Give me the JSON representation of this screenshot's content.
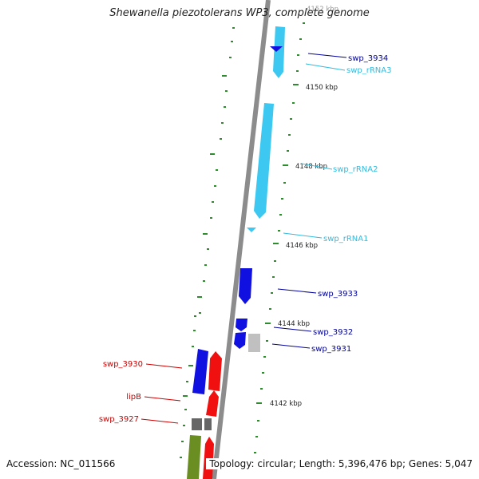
{
  "title": "Shewanella piezotolerans WP3, complete genome",
  "accession_text": "Accession: NC_011566",
  "summary_text": "Topology: circular; Length: 5,396,476 bp; Genes: 5,047",
  "colors": {
    "backbone": "#8c8c8c",
    "tick": "#2e8b2e",
    "rrna": "#3cc8f0",
    "cds_blue": "#1010e0",
    "cds_red": "#f01010",
    "cds_gray": "#c0c0c0",
    "cds_dark": "#666666",
    "cds_olive": "#6b8e23",
    "label_blue": "#000099",
    "label_cyan": "#33bbdd",
    "label_red": "#cc0000"
  },
  "scale_labels": [
    "4152 kbp",
    "4150 kbp",
    "4148 kbp",
    "4146 kbp",
    "4144 kbp",
    "4142 kbp"
  ],
  "features": [
    {
      "name": "swp_3934",
      "kind": "cds",
      "strand": "+",
      "start_kbp": 4151.25,
      "end_kbp": 4151.35
    },
    {
      "name": "swp_rRNA3",
      "kind": "rRNA",
      "strand": "-",
      "start_kbp": 4150.6,
      "end_kbp": 4152.1
    },
    {
      "name": "swp_rRNA2",
      "kind": "rRNA",
      "strand": "-",
      "start_kbp": 4146.9,
      "end_kbp": 4149.8
    },
    {
      "name": "swp_rRNA1",
      "kind": "rRNA",
      "strand": "-",
      "start_kbp": 4146.3,
      "end_kbp": 4146.4
    },
    {
      "name": "swp_3933",
      "kind": "cds",
      "strand": "-",
      "start_kbp": 4144.8,
      "end_kbp": 4145.6
    },
    {
      "name": "swp_3932",
      "kind": "cds",
      "strand": "+",
      "start_kbp": 4144.0,
      "end_kbp": 4144.3
    },
    {
      "name": "swp_3931",
      "kind": "cds",
      "strand": "-",
      "start_kbp": 4143.6,
      "end_kbp": 4144.1
    },
    {
      "name": "swp_3930",
      "kind": "cds",
      "strand": "+",
      "start_kbp": 4142.2,
      "end_kbp": 4143.8
    },
    {
      "name": "lipB",
      "kind": "cds",
      "strand": "+",
      "start_kbp": 4142.0,
      "end_kbp": 4142.8
    },
    {
      "name": "swp_3927",
      "kind": "cds",
      "strand": "-",
      "start_kbp": 4141.3,
      "end_kbp": 4141.6
    }
  ]
}
